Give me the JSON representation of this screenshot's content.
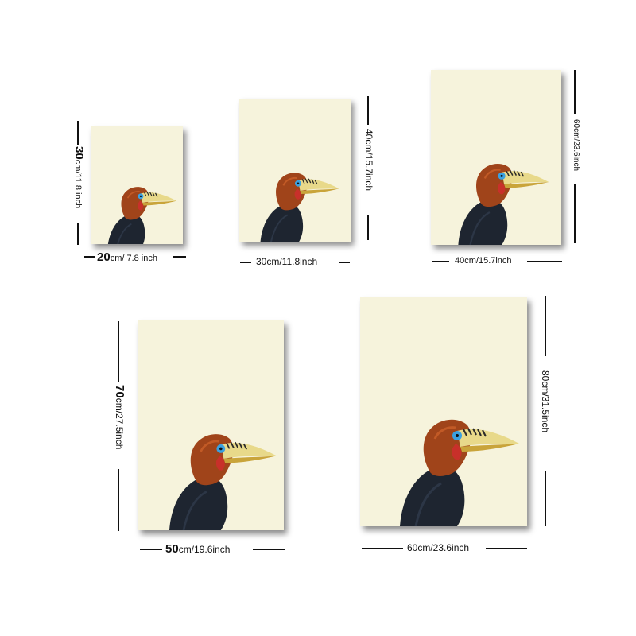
{
  "sizes": [
    {
      "width_label_big": "20",
      "width_label_small": "cm/ 7.8 inch",
      "height_label_big": "30",
      "height_label_small": "cm/11.8 inch"
    },
    {
      "width_label": "30cm/11.8inch",
      "height_label": "40cm/15.7inch"
    },
    {
      "width_label": "40cm/15.7inch",
      "height_label": "60cm/23.6inch"
    },
    {
      "width_label_big": "50",
      "width_label_small": "cm/19.6inch",
      "height_label_big": "70",
      "height_label_small": "cm/27.5inch"
    },
    {
      "width_label": "60cm/23.6inch",
      "height_label": "80cm/31.5inch"
    }
  ],
  "colors": {
    "canvas_background": "#f6f3dc",
    "bird_head": "#a0441a",
    "bird_body": "#1e2530",
    "beak": "#e8d98a",
    "eye_ring": "#3aa0e0"
  }
}
